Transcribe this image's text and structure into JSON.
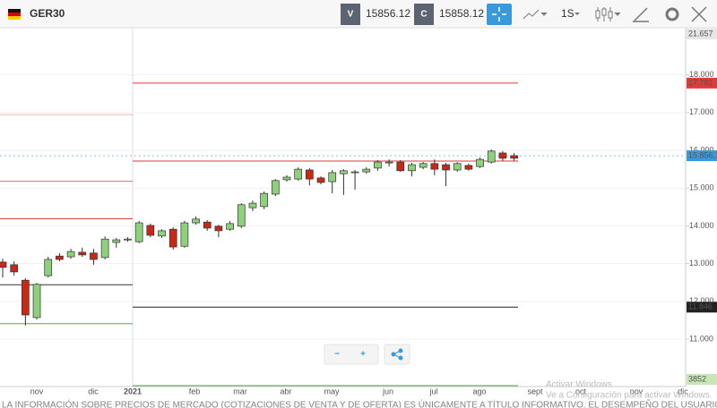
{
  "toolbar": {
    "symbol": "GER30",
    "sell_label": "V",
    "sell_price": "15856.12",
    "buy_label": "C",
    "buy_price": "15858.12",
    "timeframe": "1S"
  },
  "chart_data": {
    "type": "candlestick",
    "open": [
      13040,
      12970,
      12560,
      11570,
      12680,
      13200,
      13180,
      13300,
      13280,
      13160,
      13560,
      13630,
      13580,
      14010,
      13730,
      13910,
      13460,
      14080,
      14100,
      13990,
      13910,
      13990,
      14480,
      14510,
      14840,
      15220,
      15240,
      15480,
      15270,
      15170,
      15380,
      15410,
      15430,
      15530,
      15670,
      15690,
      15460,
      15550,
      15650,
      15620,
      15480,
      15600,
      15570,
      15690,
      15930,
      15860
    ],
    "high": [
      13130,
      13060,
      12610,
      12490,
      13180,
      13280,
      13390,
      13420,
      13390,
      13720,
      13680,
      13700,
      14130,
      14060,
      13910,
      13960,
      14130,
      14250,
      14150,
      14030,
      14130,
      14600,
      14670,
      14910,
      15240,
      15340,
      15550,
      15530,
      15310,
      15480,
      15500,
      15480,
      15550,
      15740,
      15760,
      15740,
      15670,
      15690,
      15760,
      15670,
      15690,
      15650,
      15810,
      16020,
      15980,
      15930
    ],
    "low": [
      12630,
      12680,
      11360,
      11520,
      12630,
      13060,
      13130,
      13180,
      12970,
      13110,
      13420,
      13580,
      13540,
      13700,
      13680,
      13370,
      13420,
      14030,
      13870,
      13700,
      13870,
      13940,
      14390,
      14440,
      14790,
      15170,
      15200,
      15070,
      15100,
      14860,
      14820,
      14960,
      15380,
      15460,
      15570,
      15430,
      15310,
      15500,
      15340,
      15050,
      15430,
      15460,
      15530,
      15650,
      15720,
      15720
    ],
    "close": [
      12900,
      12780,
      11640,
      12450,
      13110,
      13110,
      13320,
      13230,
      13110,
      13650,
      13630,
      13650,
      14080,
      13750,
      13870,
      13440,
      14080,
      14180,
      13940,
      13870,
      14060,
      14560,
      14600,
      14860,
      15200,
      15290,
      15500,
      15240,
      15150,
      15410,
      15460,
      15430,
      15500,
      15690,
      15690,
      15460,
      15620,
      15650,
      15500,
      15480,
      15650,
      15500,
      15760,
      15980,
      15790,
      15790
    ],
    "up_color": "#8fcf7e",
    "down_color": "#c42a18",
    "ylim": [
      9744,
      19200
    ],
    "yticks": [
      {
        "value": 11000,
        "label": "11.000"
      },
      {
        "value": 12000,
        "label": "12.000"
      },
      {
        "value": 13000,
        "label": "13.000"
      },
      {
        "value": 14000,
        "label": "14.000"
      },
      {
        "value": 15000,
        "label": "15.000"
      },
      {
        "value": 16000,
        "label": "16.000"
      },
      {
        "value": 17000,
        "label": "17.000"
      },
      {
        "value": 18000,
        "label": "18.000"
      }
    ],
    "x_labels": [
      "nov",
      "dic",
      "2021",
      "feb",
      "mar",
      "abr",
      "may",
      "jun",
      "jul",
      "ago",
      "sept",
      "oct",
      "nov",
      "dic"
    ],
    "levels": [
      {
        "value": 17781,
        "label": "17.781",
        "color": "#e03a3a"
      },
      {
        "value": 15716,
        "color": "#e03a3a"
      },
      {
        "value": 11846,
        "label": "11.846",
        "color": "#222"
      }
    ],
    "previous_levels": [
      {
        "value": 16950,
        "color": "#f3b0b0"
      },
      {
        "value": 15180,
        "color": "#e66"
      },
      {
        "value": 14190,
        "color": "#d33"
      },
      {
        "value": 12440,
        "color": "#333"
      },
      {
        "value": 11410,
        "color": "#5a5"
      }
    ],
    "current_price": {
      "value": 15856.12,
      "label": "15.856,12",
      "color": "#3a9ad9"
    },
    "offscale_markers": [
      {
        "value": 21657,
        "label": "21.657",
        "color": "#e6e6e6"
      },
      {
        "value": 3852,
        "label": "3852",
        "color": "#c8e6b8"
      }
    ]
  },
  "controls": {
    "zoom_out": "−",
    "zoom_in": "+"
  },
  "watermark": {
    "title": "Activar Windows",
    "subtitle": "Ve a Configuración para activar Windows."
  },
  "footer": {
    "disclaimer": "LA INFORMACIÓN SOBRE PRECIOS DE MERCADO (COTIZACIONES DE VENTA Y DE OFERTA) ES ÚNICAMENTE A TÍTULO INFORMATIVO. EL DESEMPEÑO DEL USUARIO SE BASA EN LOS RESULTADOS SIMULADOS DE CORTA DE OPERACIONES POR VALOR DE"
  }
}
